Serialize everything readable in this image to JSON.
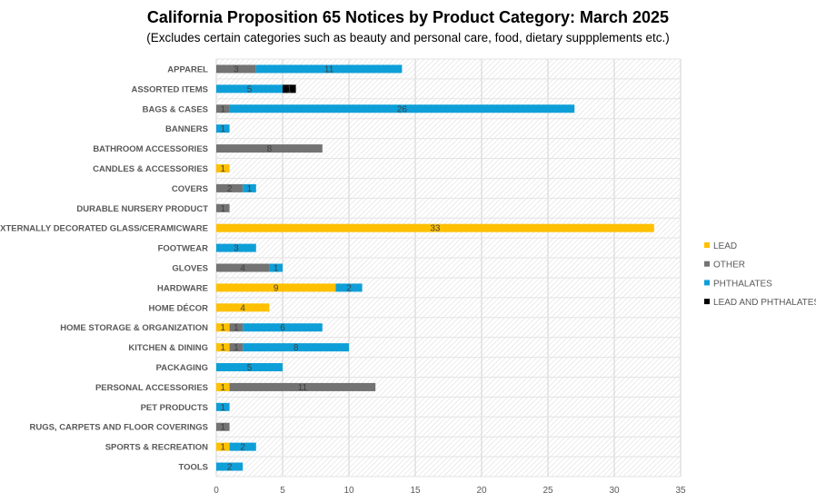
{
  "chart_data": {
    "type": "bar",
    "orientation": "horizontal",
    "stacked": true,
    "title": "California Proposition 65 Notices by Product Category: March 2025",
    "subtitle": "(Excludes certain categories such as beauty and personal care, food, dietary suppplements etc.)",
    "xlim": [
      0,
      35
    ],
    "xticks": [
      0,
      5,
      10,
      15,
      20,
      25,
      30,
      35
    ],
    "grid": true,
    "legend_position": "right",
    "categories": [
      "APPAREL",
      "ASSORTED ITEMS",
      "BAGS & CASES",
      "BANNERS",
      "BATHROOM ACCESSORIES",
      "CANDLES & ACCESSORIES",
      "COVERS",
      "DURABLE NURSERY PRODUCT",
      "EXTERNALLY DECORATED GLASS/CERAMICWARE",
      "FOOTWEAR",
      "GLOVES",
      "HARDWARE",
      "HOME DÉCOR",
      "HOME STORAGE & ORGANIZATION",
      "KITCHEN & DINING",
      "PACKAGING",
      "PERSONAL ACCESSORIES",
      "PET PRODUCTS",
      "RUGS, CARPETS AND FLOOR COVERINGS",
      "SPORTS & RECREATION",
      "TOOLS"
    ],
    "series": [
      {
        "name": "LEAD",
        "color": "#FFC000",
        "values": [
          0,
          0,
          0,
          0,
          0,
          1,
          0,
          0,
          33,
          0,
          0,
          9,
          4,
          1,
          1,
          0,
          1,
          0,
          0,
          1,
          0
        ]
      },
      {
        "name": "OTHER",
        "color": "#737373",
        "values": [
          3,
          0,
          1,
          0,
          8,
          0,
          2,
          1,
          0,
          0,
          4,
          0,
          0,
          1,
          1,
          0,
          11,
          0,
          1,
          0,
          0
        ]
      },
      {
        "name": "PHTHALATES",
        "color": "#0E9FD8",
        "values": [
          11,
          5,
          26,
          1,
          0,
          0,
          1,
          0,
          0,
          3,
          1,
          2,
          0,
          6,
          8,
          5,
          0,
          1,
          0,
          2,
          2
        ]
      },
      {
        "name": "LEAD AND PHTHALATES",
        "color": "#000000",
        "values": [
          0,
          1,
          0,
          0,
          0,
          0,
          0,
          0,
          0,
          0,
          0,
          0,
          0,
          0,
          0,
          0,
          0,
          0,
          0,
          0,
          0
        ]
      }
    ]
  }
}
